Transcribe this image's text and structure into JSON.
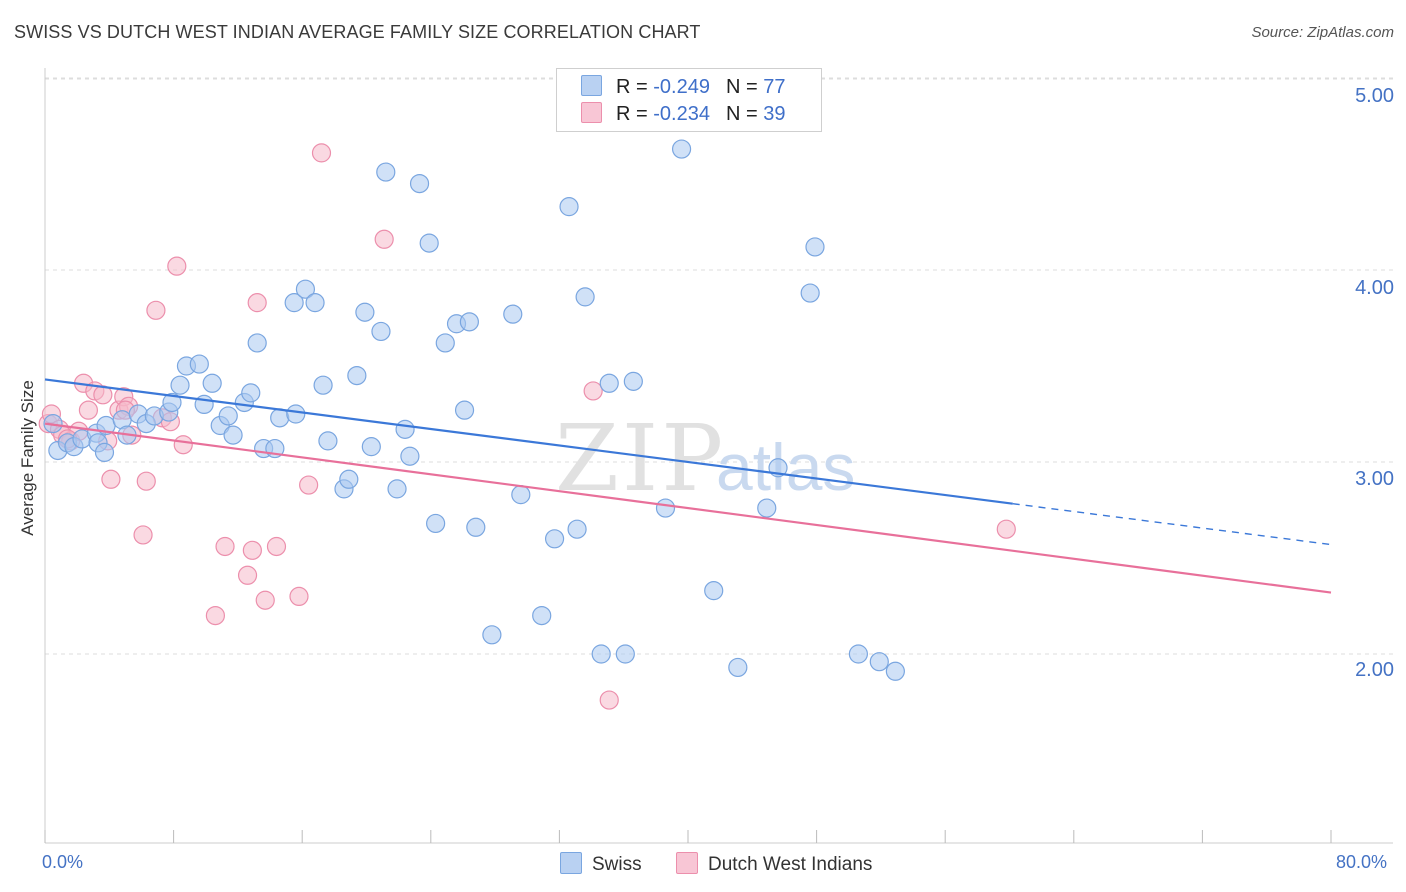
{
  "header": {
    "title": "SWISS VS DUTCH WEST INDIAN AVERAGE FAMILY SIZE CORRELATION CHART",
    "source": "Source: ZipAtlas.com"
  },
  "watermark": {
    "zip": "ZIP",
    "atlas": "atlas"
  },
  "legend": {
    "swiss": {
      "r_label": "R = ",
      "r_value": "-0.249",
      "n_label": "N = ",
      "n_value": "77"
    },
    "dwi": {
      "r_label": "R = ",
      "r_value": "-0.234",
      "n_label": "N = ",
      "n_value": "39"
    }
  },
  "bottom_legend": {
    "swiss": "Swiss",
    "dwi": "Dutch West Indians"
  },
  "colors": {
    "swiss_fill": "#a9c8f0",
    "swiss_stroke": "#7aa6e0",
    "swiss_line": "#3b78d8",
    "dwi_fill": "#f6b9cb",
    "dwi_stroke": "#ec8fac",
    "dwi_line": "#e8709a",
    "tick_text": "#4472c4",
    "grid": "#dddddd"
  },
  "chart_data": {
    "type": "scatter",
    "title": "SWISS VS DUTCH WEST INDIAN AVERAGE FAMILY SIZE CORRELATION CHART",
    "xlabel": "",
    "ylabel": "Average Family Size",
    "xlim": [
      0,
      80
    ],
    "ylim": [
      1.0,
      5.1
    ],
    "x_tick_labels": [
      "0.0%",
      "80.0%"
    ],
    "y_ticks": [
      {
        "value": 2.0,
        "label": "2.00"
      },
      {
        "value": 3.0,
        "label": "3.00"
      },
      {
        "value": 4.0,
        "label": "4.00"
      },
      {
        "value": 5.0,
        "label": "5.00"
      }
    ],
    "grid": true,
    "legend_position": "top-center",
    "series": [
      {
        "name": "Swiss",
        "r": -0.249,
        "n": 77,
        "trend": {
          "x_start": 0,
          "y_start": 3.43,
          "x_solid_end": 60.2,
          "x_end": 80,
          "y_end": 2.57
        },
        "points": [
          [
            0.5,
            3.2
          ],
          [
            0.8,
            3.06
          ],
          [
            1.4,
            3.1
          ],
          [
            1.8,
            3.08
          ],
          [
            2.3,
            3.12
          ],
          [
            3.2,
            3.15
          ],
          [
            3.3,
            3.1
          ],
          [
            3.7,
            3.05
          ],
          [
            3.8,
            3.19
          ],
          [
            4.8,
            3.22
          ],
          [
            5.1,
            3.14
          ],
          [
            5.8,
            3.25
          ],
          [
            6.3,
            3.2
          ],
          [
            6.8,
            3.24
          ],
          [
            7.7,
            3.26
          ],
          [
            7.9,
            3.31
          ],
          [
            8.4,
            3.4
          ],
          [
            8.8,
            3.5
          ],
          [
            9.6,
            3.51
          ],
          [
            9.9,
            3.3
          ],
          [
            10.4,
            3.41
          ],
          [
            10.9,
            3.19
          ],
          [
            11.4,
            3.24
          ],
          [
            11.7,
            3.14
          ],
          [
            12.4,
            3.31
          ],
          [
            12.8,
            3.36
          ],
          [
            13.2,
            3.62
          ],
          [
            13.6,
            3.07
          ],
          [
            14.3,
            3.07
          ],
          [
            14.6,
            3.23
          ],
          [
            15.5,
            3.83
          ],
          [
            15.6,
            3.25
          ],
          [
            16.2,
            3.9
          ],
          [
            16.8,
            3.83
          ],
          [
            17.3,
            3.4
          ],
          [
            17.6,
            3.11
          ],
          [
            18.6,
            2.86
          ],
          [
            18.9,
            2.91
          ],
          [
            19.4,
            3.45
          ],
          [
            19.9,
            3.78
          ],
          [
            20.3,
            3.08
          ],
          [
            20.9,
            3.68
          ],
          [
            21.2,
            4.51
          ],
          [
            21.9,
            2.86
          ],
          [
            22.4,
            3.17
          ],
          [
            22.7,
            3.03
          ],
          [
            23.3,
            4.45
          ],
          [
            23.9,
            4.14
          ],
          [
            24.3,
            2.68
          ],
          [
            24.9,
            3.62
          ],
          [
            25.6,
            3.72
          ],
          [
            26.1,
            3.27
          ],
          [
            26.4,
            3.73
          ],
          [
            26.8,
            2.66
          ],
          [
            27.8,
            2.1
          ],
          [
            29.1,
            3.77
          ],
          [
            29.6,
            2.83
          ],
          [
            30.9,
            2.2
          ],
          [
            31.7,
            2.6
          ],
          [
            32.6,
            4.33
          ],
          [
            33.1,
            2.65
          ],
          [
            33.6,
            3.86
          ],
          [
            34.6,
            2.0
          ],
          [
            35.1,
            3.41
          ],
          [
            36.1,
            2.0
          ],
          [
            36.6,
            3.42
          ],
          [
            38.6,
            2.76
          ],
          [
            39.6,
            4.63
          ],
          [
            41.6,
            2.33
          ],
          [
            43.1,
            1.93
          ],
          [
            44.9,
            2.76
          ],
          [
            45.6,
            2.97
          ],
          [
            47.6,
            3.88
          ],
          [
            47.9,
            4.12
          ],
          [
            50.6,
            2.0
          ],
          [
            51.9,
            1.96
          ],
          [
            52.9,
            1.91
          ]
        ]
      },
      {
        "name": "Dutch West Indians",
        "r": -0.234,
        "n": 39,
        "trend": {
          "x_start": 0,
          "y_start": 3.2,
          "x_end": 80,
          "y_end": 2.32
        },
        "points": [
          [
            0.2,
            3.2
          ],
          [
            0.4,
            3.25
          ],
          [
            0.9,
            3.17
          ],
          [
            1.1,
            3.14
          ],
          [
            1.6,
            3.11
          ],
          [
            2.1,
            3.16
          ],
          [
            2.4,
            3.41
          ],
          [
            2.7,
            3.27
          ],
          [
            3.1,
            3.37
          ],
          [
            3.6,
            3.35
          ],
          [
            3.9,
            3.11
          ],
          [
            4.1,
            2.91
          ],
          [
            4.6,
            3.27
          ],
          [
            4.9,
            3.34
          ],
          [
            5.2,
            3.29
          ],
          [
            5.4,
            3.14
          ],
          [
            6.1,
            2.62
          ],
          [
            6.3,
            2.9
          ],
          [
            6.9,
            3.79
          ],
          [
            7.3,
            3.23
          ],
          [
            7.8,
            3.21
          ],
          [
            8.2,
            4.02
          ],
          [
            8.6,
            3.09
          ],
          [
            10.6,
            2.2
          ],
          [
            11.2,
            2.56
          ],
          [
            12.6,
            2.41
          ],
          [
            12.9,
            2.54
          ],
          [
            13.2,
            3.83
          ],
          [
            13.7,
            2.28
          ],
          [
            14.4,
            2.56
          ],
          [
            15.8,
            2.3
          ],
          [
            16.4,
            2.88
          ],
          [
            17.2,
            4.61
          ],
          [
            21.1,
            4.16
          ],
          [
            34.1,
            3.37
          ],
          [
            35.1,
            1.76
          ],
          [
            59.8,
            2.65
          ],
          [
            1.4,
            3.12
          ],
          [
            5.0,
            3.27
          ]
        ]
      }
    ]
  }
}
